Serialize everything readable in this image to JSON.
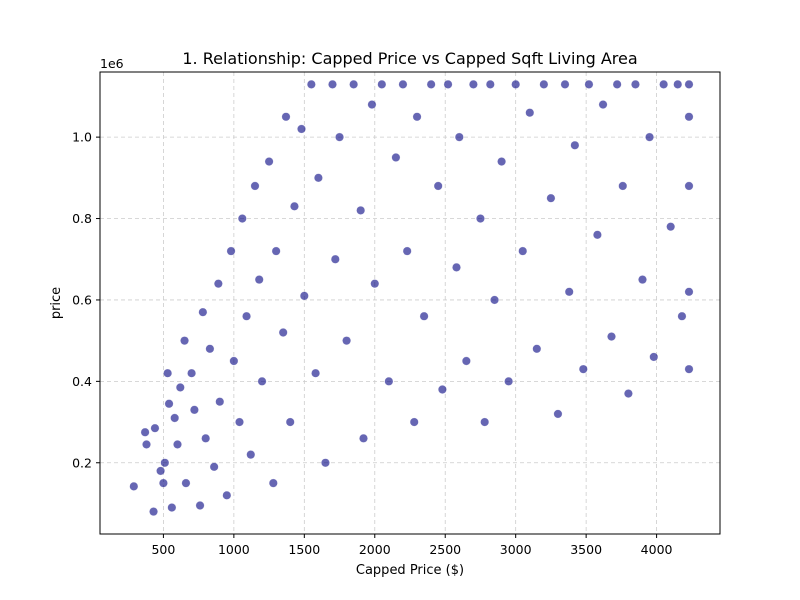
{
  "chart_data": {
    "type": "scatter",
    "title": "1. Relationship: Capped Price vs Capped Sqft Living Area",
    "xlabel": "Capped Price ($)",
    "ylabel": "price",
    "y_offset_label": "1e6",
    "xlim": [
      50,
      4450
    ],
    "ylim": [
      25000,
      1160000
    ],
    "x_ticks": [
      500,
      1000,
      1500,
      2000,
      2500,
      3000,
      3500,
      4000
    ],
    "y_ticks": [
      200000,
      400000,
      600000,
      800000,
      1000000
    ],
    "y_tick_labels": [
      "0.2",
      "0.4",
      "0.6",
      "0.8",
      "1.0"
    ],
    "grid": true,
    "marker_color": "#000080",
    "x_cap": 4230,
    "y_cap": 1129575,
    "series": [
      {
        "points": [
          [
            290,
            142000
          ],
          [
            370,
            275000
          ],
          [
            380,
            245000
          ],
          [
            430,
            80000
          ],
          [
            440,
            285000
          ],
          [
            480,
            180000
          ],
          [
            500,
            150000
          ],
          [
            510,
            200000
          ],
          [
            530,
            420000
          ],
          [
            540,
            345000
          ],
          [
            560,
            90000
          ],
          [
            580,
            310000
          ],
          [
            600,
            245000
          ],
          [
            620,
            385000
          ],
          [
            650,
            500000
          ],
          [
            660,
            150000
          ],
          [
            700,
            420000
          ],
          [
            720,
            330000
          ],
          [
            760,
            95000
          ],
          [
            780,
            570000
          ],
          [
            800,
            260000
          ],
          [
            830,
            480000
          ],
          [
            860,
            190000
          ],
          [
            890,
            640000
          ],
          [
            900,
            350000
          ],
          [
            950,
            120000
          ],
          [
            980,
            720000
          ],
          [
            1000,
            450000
          ],
          [
            1040,
            300000
          ],
          [
            1060,
            800000
          ],
          [
            1090,
            560000
          ],
          [
            1120,
            220000
          ],
          [
            1150,
            880000
          ],
          [
            1180,
            650000
          ],
          [
            1200,
            400000
          ],
          [
            1250,
            940000
          ],
          [
            1280,
            150000
          ],
          [
            1300,
            720000
          ],
          [
            1350,
            520000
          ],
          [
            1370,
            1050000
          ],
          [
            1400,
            300000
          ],
          [
            1430,
            830000
          ],
          [
            1480,
            1020000
          ],
          [
            1500,
            610000
          ],
          [
            1550,
            1129575
          ],
          [
            1580,
            420000
          ],
          [
            1600,
            900000
          ],
          [
            1650,
            200000
          ],
          [
            1700,
            1129575
          ],
          [
            1720,
            700000
          ],
          [
            1750,
            1000000
          ],
          [
            1800,
            500000
          ],
          [
            1850,
            1129575
          ],
          [
            1900,
            820000
          ],
          [
            1920,
            260000
          ],
          [
            1980,
            1080000
          ],
          [
            2000,
            640000
          ],
          [
            2050,
            1129575
          ],
          [
            2100,
            400000
          ],
          [
            2150,
            950000
          ],
          [
            2200,
            1129575
          ],
          [
            2230,
            720000
          ],
          [
            2280,
            300000
          ],
          [
            2300,
            1050000
          ],
          [
            2350,
            560000
          ],
          [
            2400,
            1129575
          ],
          [
            2450,
            880000
          ],
          [
            2480,
            380000
          ],
          [
            2520,
            1129575
          ],
          [
            2580,
            680000
          ],
          [
            2600,
            1000000
          ],
          [
            2650,
            450000
          ],
          [
            2700,
            1129575
          ],
          [
            2750,
            800000
          ],
          [
            2780,
            300000
          ],
          [
            2820,
            1129575
          ],
          [
            2850,
            600000
          ],
          [
            2900,
            940000
          ],
          [
            2950,
            400000
          ],
          [
            3000,
            1129575
          ],
          [
            3050,
            720000
          ],
          [
            3100,
            1060000
          ],
          [
            3150,
            480000
          ],
          [
            3200,
            1129575
          ],
          [
            3250,
            850000
          ],
          [
            3300,
            320000
          ],
          [
            3350,
            1129575
          ],
          [
            3380,
            620000
          ],
          [
            3420,
            980000
          ],
          [
            3480,
            430000
          ],
          [
            3520,
            1129575
          ],
          [
            3580,
            760000
          ],
          [
            3620,
            1080000
          ],
          [
            3680,
            510000
          ],
          [
            3720,
            1129575
          ],
          [
            3760,
            880000
          ],
          [
            3800,
            370000
          ],
          [
            3850,
            1129575
          ],
          [
            3900,
            650000
          ],
          [
            3950,
            1000000
          ],
          [
            3980,
            460000
          ],
          [
            4050,
            1129575
          ],
          [
            4100,
            780000
          ],
          [
            4150,
            1129575
          ],
          [
            4180,
            560000
          ],
          [
            4230,
            430000
          ],
          [
            4230,
            620000
          ],
          [
            4230,
            880000
          ],
          [
            4230,
            1050000
          ],
          [
            4230,
            1129575
          ]
        ]
      }
    ]
  }
}
